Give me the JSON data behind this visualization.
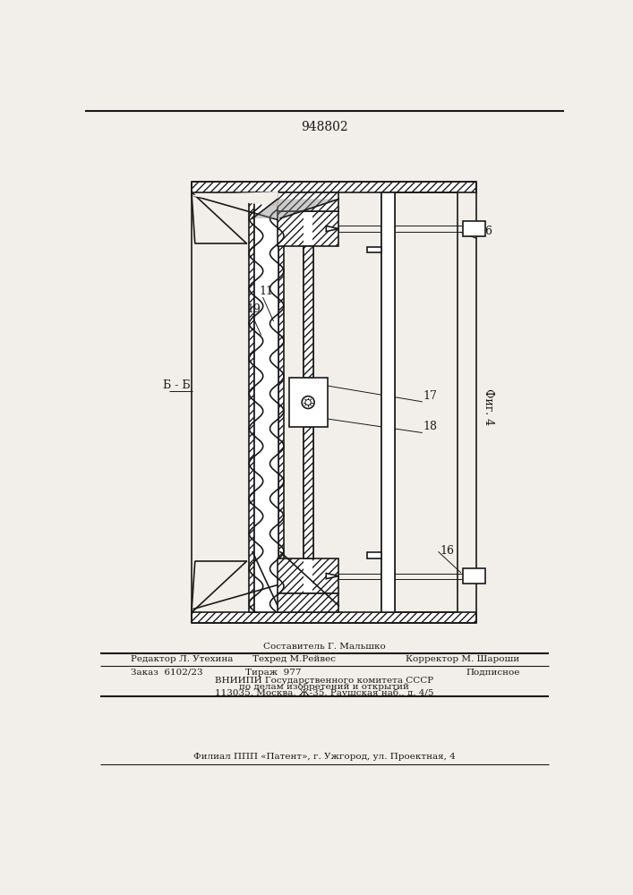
{
  "bg_color": "#f2efea",
  "line_color": "#1a1a1a",
  "title": "948802",
  "fig_label": "Фиг. 4",
  "section_label": "Б - Б",
  "footer": {
    "line1_center": "Составитель Г. Мальшко",
    "line2_left": "Редактор Л. Утехина",
    "line2_center": "Техред М.Рейвес",
    "line2_right": "Корректор М. Шароши",
    "line3_left": "Заказ  6102/23",
    "line3_center": "Тираж  977",
    "line3_right": "Подписное",
    "line4": "ВНИИПИ Государственного комитета СССР",
    "line5": "по делам изобретений и открытий",
    "line6": "113035, Москва, Ж-35, Раушская наб., д. 4/5",
    "line7": "Филиал ППП «Патент», г. Ужгород, ул. Проектная, 4"
  }
}
